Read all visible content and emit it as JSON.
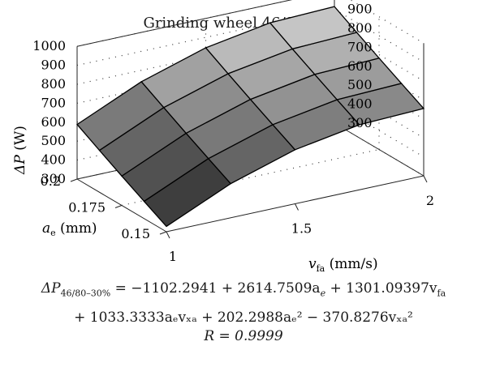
{
  "chart_data": {
    "type": "surface",
    "title": "Grinding wheel 46/80–30%",
    "zlabel": "ΔP (W)",
    "xlabel": "v_fa (mm/s)",
    "ylabel": "a_e (mm)",
    "zlim": [
      300,
      1000
    ],
    "ztick_labels": [
      "300",
      "400",
      "500",
      "600",
      "700",
      "800",
      "900",
      "1000"
    ],
    "xtick_labels": [
      "1",
      "1.5",
      "2"
    ],
    "ytick_labels": [
      "0.15",
      "0.175",
      "0.2"
    ],
    "x": [
      1.0,
      1.25,
      1.5,
      1.75,
      2.0
    ],
    "y": [
      0.15,
      0.1625,
      0.175,
      0.1875,
      0.2
    ],
    "z": [
      [
        328,
        480,
        585,
        643,
        655
      ],
      [
        391,
        543,
        648,
        706,
        718
      ],
      [
        455,
        607,
        712,
        770,
        782
      ],
      [
        521,
        673,
        778,
        835,
        848
      ],
      [
        588,
        740,
        845,
        903,
        915
      ]
    ],
    "grid": true
  },
  "equation": {
    "line1_lhs": "ΔP",
    "line1_sub": "46/80–30%",
    "line1_rhs": " = −1102.2941 + 2614.7509a",
    "line1_e": "e",
    "line1_rest": " + 1301.09397v",
    "line1_fa": "fa",
    "line2": "+ 1033.3333aₑvₓₐ + 202.2988aₑ² − 370.8276vₓₐ²",
    "line3": "R = 0.9999"
  },
  "axis_text": {
    "z_label_main": "ΔP",
    "z_label_unit": " (W)",
    "y_label_main": "a",
    "y_label_sub": "e",
    "y_label_unit": " (mm)",
    "x_label_main": "v",
    "x_label_sub": "fa",
    "x_label_unit": " (mm/s)"
  }
}
